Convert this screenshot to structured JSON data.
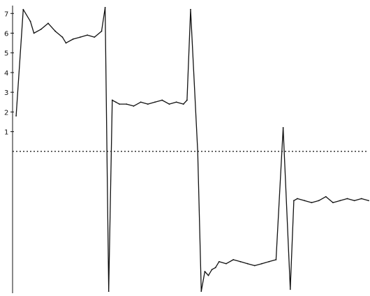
{
  "chart_data": {
    "type": "line",
    "title": "",
    "xlabel": "",
    "ylabel": "",
    "ylim": [
      -7.2,
      7.4
    ],
    "xlim": [
      0,
      100
    ],
    "grid": false,
    "legend": "none",
    "y_tick_labels": [
      "1",
      "2",
      "3",
      "4",
      "5",
      "6",
      "7"
    ],
    "y_ticks": [
      1,
      2,
      3,
      4,
      5,
      6,
      7
    ],
    "baseline_value": 0,
    "baseline_style": "dotted",
    "series": [
      {
        "x": [
          1,
          3,
          5,
          6,
          8,
          10,
          12,
          14,
          15,
          17,
          19,
          21,
          23,
          25,
          26,
          27,
          28,
          29,
          30,
          32,
          34,
          36,
          38,
          40,
          42,
          44,
          46,
          48,
          49,
          50,
          52,
          53,
          54,
          55,
          56,
          57,
          58,
          60,
          62,
          64,
          66,
          68,
          70,
          72,
          74,
          76,
          78,
          79,
          80,
          82,
          84,
          86,
          88,
          90,
          92,
          94,
          96,
          98,
          100
        ],
        "y": [
          1.8,
          7.2,
          6.6,
          6.0,
          6.2,
          6.5,
          6.1,
          5.8,
          5.5,
          5.7,
          5.8,
          5.9,
          5.8,
          6.1,
          7.3,
          -7.1,
          2.6,
          2.5,
          2.4,
          2.4,
          2.3,
          2.5,
          2.4,
          2.5,
          2.6,
          2.4,
          2.5,
          2.4,
          2.6,
          7.2,
          0.0,
          -7.1,
          -6.1,
          -6.3,
          -6.0,
          -5.9,
          -5.6,
          -5.7,
          -5.5,
          -5.6,
          -5.7,
          -5.8,
          -5.7,
          -5.6,
          -5.5,
          1.2,
          -7.0,
          -2.5,
          -2.4,
          -2.5,
          -2.6,
          -2.5,
          -2.3,
          -2.6,
          -2.5,
          -2.4,
          -2.5,
          -2.4,
          -2.5
        ]
      }
    ]
  }
}
